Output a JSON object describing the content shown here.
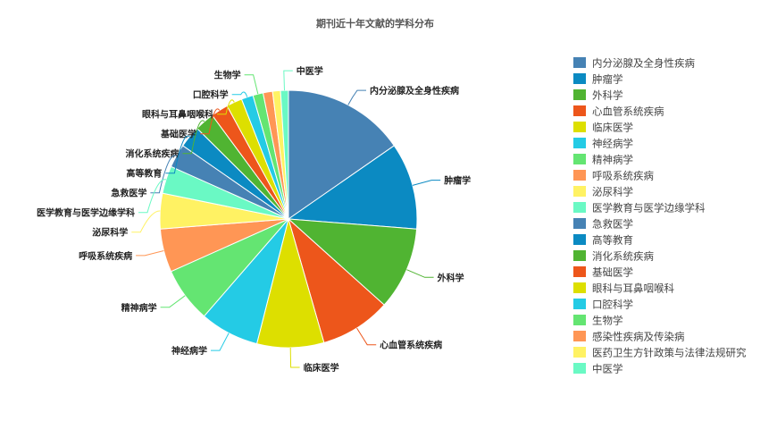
{
  "chart_data": {
    "type": "pie",
    "title": "期刊近十年文献的学科分布",
    "legend_position": "right",
    "slices": [
      {
        "label": "内分泌腺及全身性疾病",
        "value": 15.5,
        "color": "#4682b4"
      },
      {
        "label": "肿瘤学",
        "value": 11.0,
        "color": "#0b8ac2"
      },
      {
        "label": "外科学",
        "value": 10.5,
        "color": "#50b432"
      },
      {
        "label": "心血管系统疾病",
        "value": 9.0,
        "color": "#ed561b"
      },
      {
        "label": "临床医学",
        "value": 8.5,
        "color": "#dddf00"
      },
      {
        "label": "神经病学",
        "value": 7.5,
        "color": "#24cbe5"
      },
      {
        "label": "精神病学",
        "value": 7.0,
        "color": "#64e572"
      },
      {
        "label": "呼吸系统疾病",
        "value": 5.5,
        "color": "#ff9655"
      },
      {
        "label": "泌尿科学",
        "value": 4.5,
        "color": "#fff263"
      },
      {
        "label": "医学教育与医学边缘学科",
        "value": 3.5,
        "color": "#6af9c4"
      },
      {
        "label": "急救医学",
        "value": 3.0,
        "color": "#4682b4"
      },
      {
        "label": "高等教育",
        "value": 2.8,
        "color": "#0b8ac2"
      },
      {
        "label": "消化系统疾病",
        "value": 2.5,
        "color": "#50b432"
      },
      {
        "label": "基础医学",
        "value": 2.2,
        "color": "#ed561b"
      },
      {
        "label": "眼科与耳鼻咽喉科",
        "value": 2.0,
        "color": "#dddf00"
      },
      {
        "label": "口腔科学",
        "value": 1.5,
        "color": "#24cbe5"
      },
      {
        "label": "生物学",
        "value": 1.3,
        "color": "#64e572"
      },
      {
        "label": "感染性疾病及传染病",
        "value": 1.2,
        "color": "#ff9655"
      },
      {
        "label": "医药卫生方针政策与法律法规研究",
        "value": 1.0,
        "color": "#fff263"
      },
      {
        "label": "中医学",
        "value": 1.0,
        "color": "#6af9c4"
      }
    ],
    "labeled_slices": [
      "内分泌腺及全身性疾病",
      "肿瘤学",
      "外科学",
      "心血管系统疾病",
      "临床医学",
      "神经病学",
      "精神病学",
      "呼吸系统疾病",
      "泌尿科学",
      "医学教育与医学边缘学科",
      "急救医学",
      "高等教育",
      "消化系统疾病",
      "基础医学",
      "眼科与耳鼻咽喉科",
      "口腔科学",
      "生物学",
      "中医学"
    ]
  }
}
